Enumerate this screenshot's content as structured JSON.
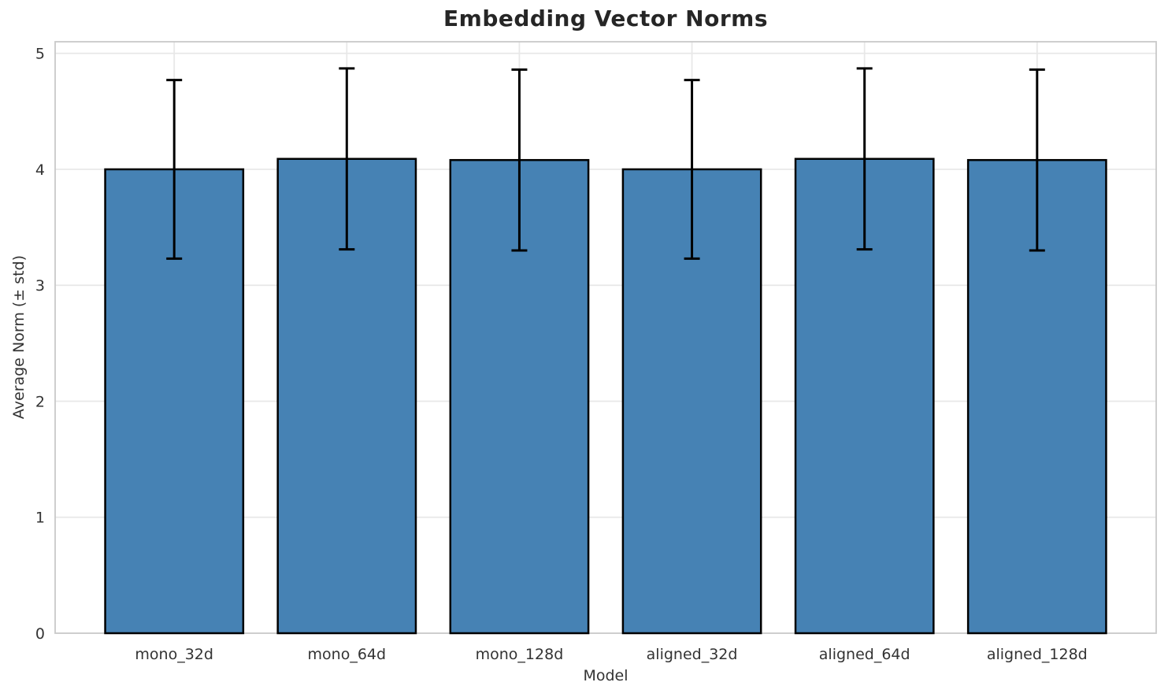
{
  "chart_data": {
    "type": "bar",
    "title": "Embedding Vector Norms",
    "xlabel": "Model",
    "ylabel": "Average Norm (± std)",
    "categories": [
      "mono_32d",
      "mono_64d",
      "mono_128d",
      "aligned_32d",
      "aligned_64d",
      "aligned_128d"
    ],
    "series": [
      {
        "name": "Average Norm",
        "values": [
          4.0,
          4.09,
          4.08,
          4.0,
          4.09,
          4.08
        ],
        "errors": [
          0.77,
          0.78,
          0.78,
          0.77,
          0.78,
          0.78
        ]
      }
    ],
    "error_bar_tops": [
      4.77,
      4.87,
      4.86,
      4.77,
      4.87,
      4.86
    ],
    "error_bar_bottoms": [
      3.23,
      3.31,
      3.3,
      3.23,
      3.31,
      3.3
    ],
    "yticks": [
      0,
      1,
      2,
      3,
      4,
      5
    ],
    "ylim": [
      0,
      5.1
    ],
    "bar_width_fraction": 0.8,
    "grid": true,
    "legend": "none",
    "colors": {
      "bar_fill": "#4682b4",
      "bar_edge": "#000000",
      "error_bar": "#000000",
      "grid_line": "#e8e8e8",
      "axes_border": "#c9c9c9",
      "tick_label": "#333333",
      "title_color": "#262626",
      "background": "#ffffff"
    }
  }
}
